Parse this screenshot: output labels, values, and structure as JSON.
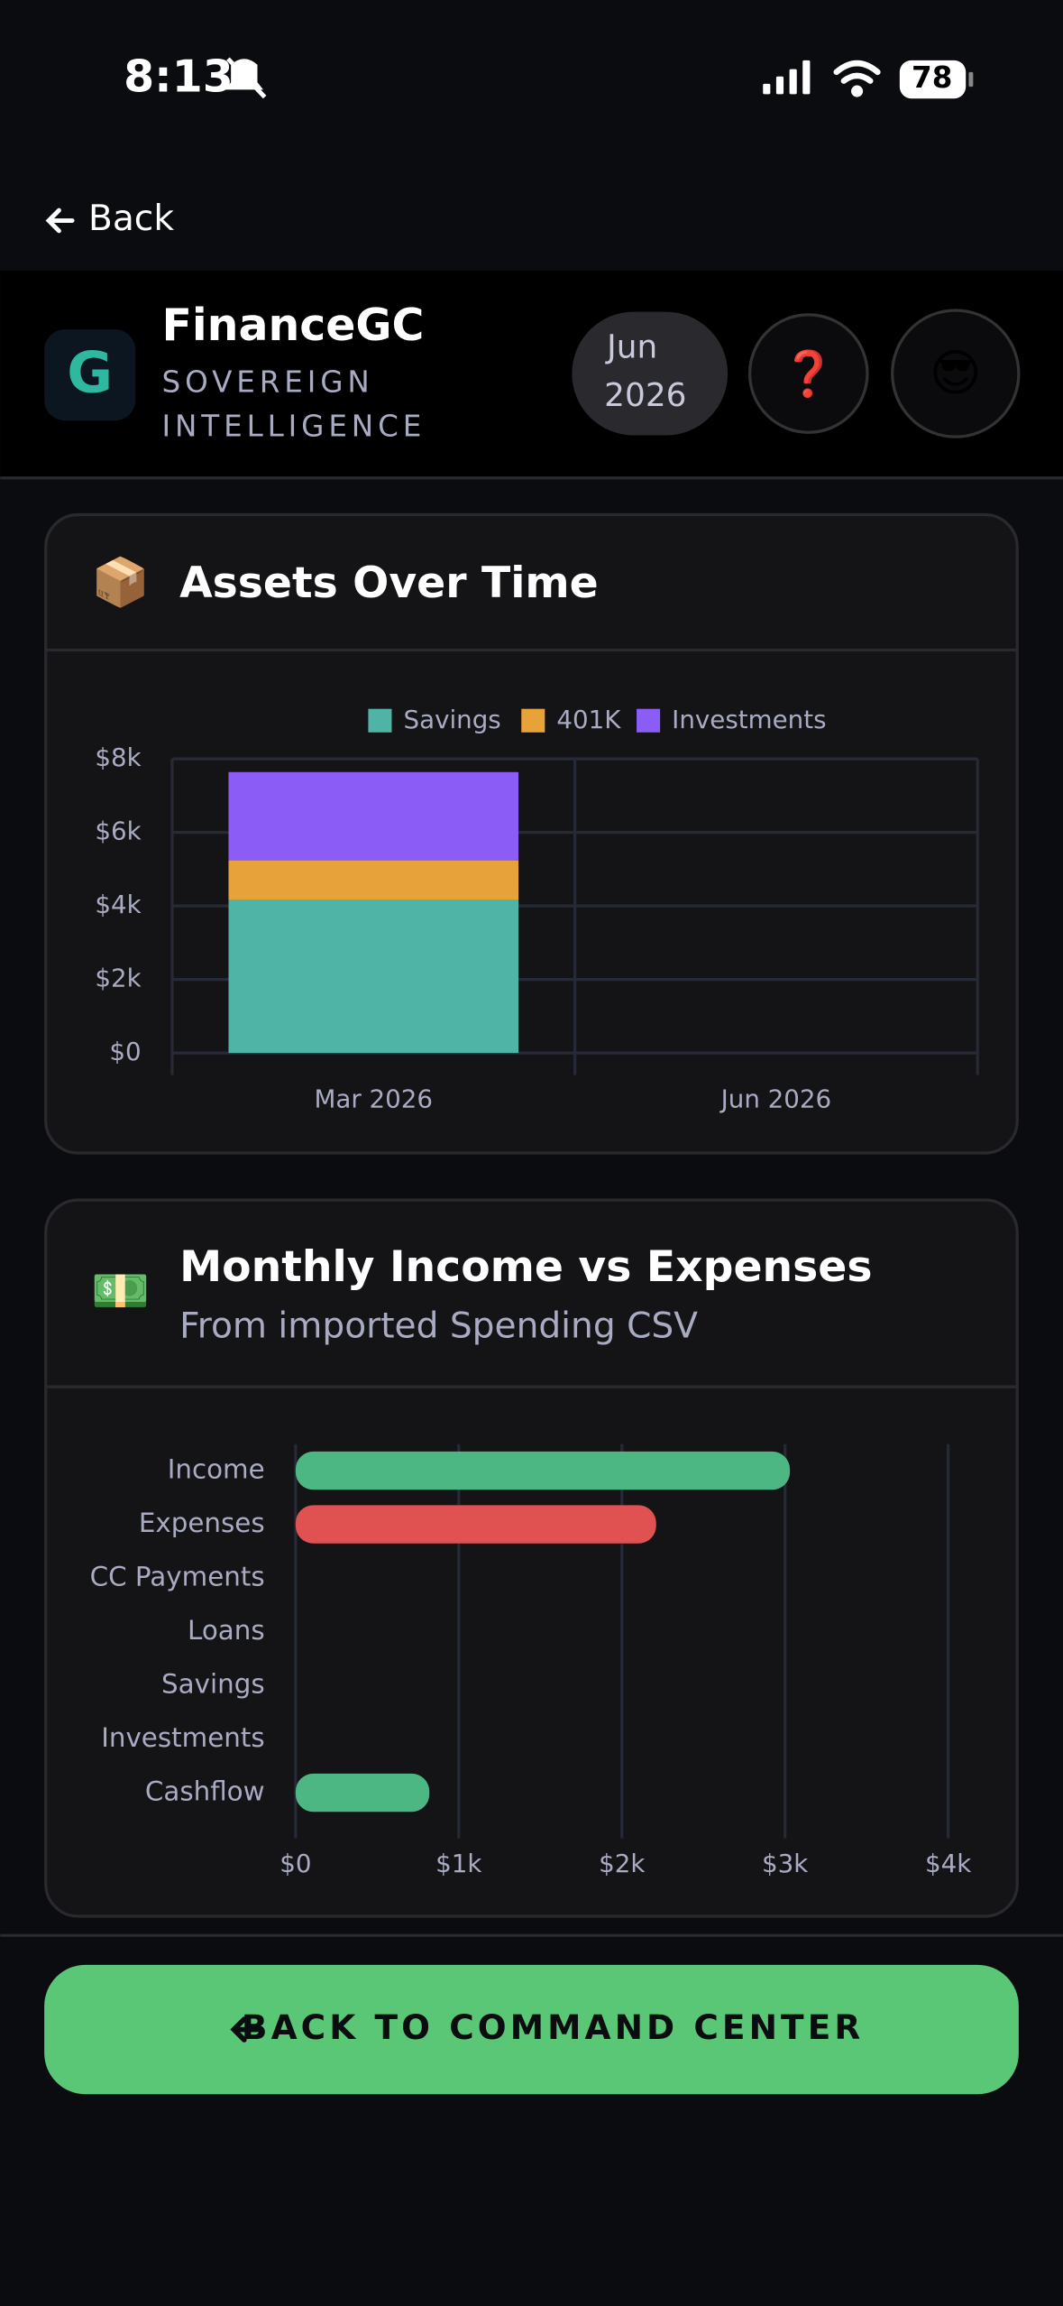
{
  "status_bar": {
    "time": "8:13",
    "battery": "78"
  },
  "nav": {
    "back": "Back"
  },
  "header": {
    "title": "FinanceGC",
    "subtitle_lines": [
      "SOVEREIGN",
      "INTELLIGENCE"
    ],
    "period_lines": [
      "Jun",
      "2026"
    ],
    "help_icon": "❓",
    "avatar_icon": "😎"
  },
  "chart_data": [
    {
      "type": "bar",
      "stacked": true,
      "icon": "📦",
      "title": "Assets Over Time",
      "legend": "top",
      "grid": true,
      "categories": [
        "Mar 2026",
        "Jun 2026"
      ],
      "series": [
        {
          "name": "Savings",
          "color": "#4fb3a5",
          "values": [
            4160,
            null
          ]
        },
        {
          "name": "401K",
          "color": "#e8a23a",
          "values": [
            1080,
            null
          ]
        },
        {
          "name": "Investments",
          "color": "#8b5cf6",
          "values": [
            2400,
            null
          ]
        }
      ],
      "ylim": [
        0,
        8000
      ],
      "yticks": [
        {
          "value": 0,
          "label": "$0"
        },
        {
          "value": 2000,
          "label": "$2k"
        },
        {
          "value": 4000,
          "label": "$4k"
        },
        {
          "value": 6000,
          "label": "$6k"
        },
        {
          "value": 8000,
          "label": "$8k"
        }
      ]
    },
    {
      "type": "bar",
      "horizontal": true,
      "icon": "💵",
      "title": "Monthly Income vs Expenses",
      "subtitle": "From imported Spending CSV",
      "grid": true,
      "categories": [
        "Income",
        "Expenses",
        "CC Payments",
        "Loans",
        "Savings",
        "Investments",
        "Cashflow"
      ],
      "values": [
        3030,
        2210,
        0,
        0,
        0,
        0,
        820
      ],
      "colors": [
        "#4cb782",
        "#e05252",
        "#4cb782",
        "#4cb782",
        "#4cb782",
        "#4cb782",
        "#4cb782"
      ],
      "xlim": [
        0,
        4000
      ],
      "xticks": [
        {
          "value": 0,
          "label": "$0"
        },
        {
          "value": 1000,
          "label": "$1k"
        },
        {
          "value": 2000,
          "label": "$2k"
        },
        {
          "value": 3000,
          "label": "$3k"
        },
        {
          "value": 4000,
          "label": "$4k"
        }
      ]
    }
  ],
  "button": {
    "label": "BACK TO COMMAND CENTER"
  }
}
